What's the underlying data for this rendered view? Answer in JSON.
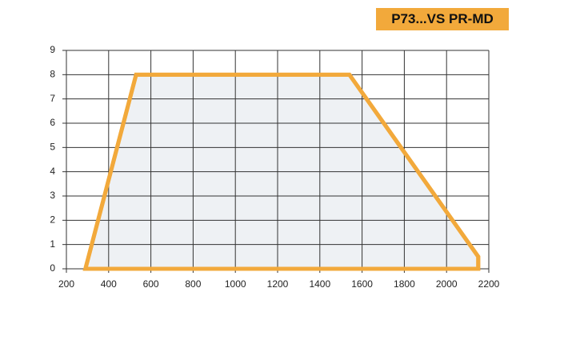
{
  "chart_data": {
    "type": "area",
    "title": "P73...VS PR-MD",
    "x": [
      290,
      530,
      1540,
      2150,
      2150
    ],
    "y": [
      0,
      8,
      8,
      0.5,
      0
    ],
    "color": "#f2a93b",
    "fill": "#eef1f4",
    "xlim": [
      200,
      2200
    ],
    "xticks": [
      200,
      400,
      600,
      800,
      1000,
      1200,
      1400,
      1600,
      1800,
      2000,
      2200
    ],
    "ylim": [
      0,
      9
    ],
    "yticks": [
      0,
      1,
      2,
      3,
      4,
      5,
      6,
      7,
      8,
      9
    ],
    "grid": true
  }
}
